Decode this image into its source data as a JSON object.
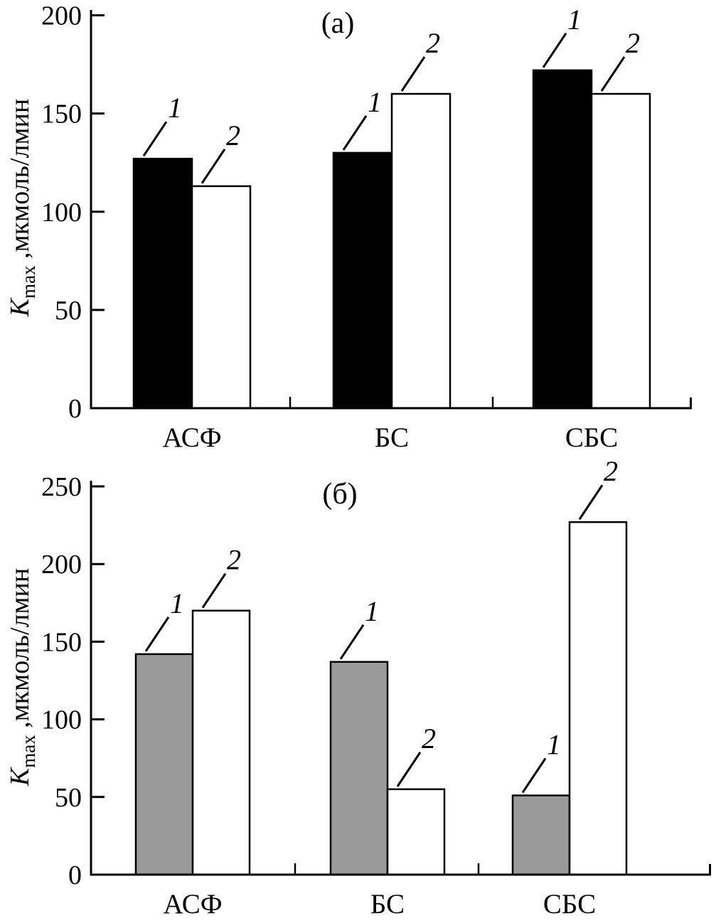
{
  "figure": {
    "background": "#ffffff",
    "ink_color": "#000000",
    "panel_count": 2
  },
  "chart_data": [
    {
      "type": "bar",
      "panel_label": "(а)",
      "categories": [
        "АСФ",
        "БС",
        "СБС"
      ],
      "series": [
        {
          "name": "1",
          "fill": "#000000",
          "values": [
            127,
            130,
            172
          ]
        },
        {
          "name": "2",
          "fill": "#ffffff",
          "values": [
            113,
            160,
            160
          ]
        }
      ],
      "ylabel": "Kmax ,мкмоль/лмин",
      "ylabel_parts": {
        "k": "K",
        "sub": "max",
        "rest": " ,мкмоль/лмин"
      },
      "xlabel": "",
      "ylim": [
        0,
        200
      ],
      "yticks": [
        0,
        50,
        100,
        150,
        200
      ],
      "grid": false,
      "legend": "none",
      "bar_annotations": [
        "1",
        "2"
      ]
    },
    {
      "type": "bar",
      "panel_label": "(б)",
      "categories": [
        "АСФ",
        "БС",
        "СБС"
      ],
      "series": [
        {
          "name": "1",
          "fill": "#9a9a9a",
          "values": [
            142,
            137,
            51
          ]
        },
        {
          "name": "2",
          "fill": "#ffffff",
          "values": [
            170,
            55,
            227
          ]
        }
      ],
      "ylabel": "Kmax ,мкмоль/лмин",
      "ylabel_parts": {
        "k": "K",
        "sub": "max",
        "rest": " ,мкмоль/лмин"
      },
      "xlabel": "",
      "ylim": [
        0,
        250
      ],
      "yticks": [
        0,
        50,
        100,
        150,
        200,
        250
      ],
      "grid": false,
      "legend": "none",
      "bar_annotations": [
        "1",
        "2"
      ]
    }
  ]
}
